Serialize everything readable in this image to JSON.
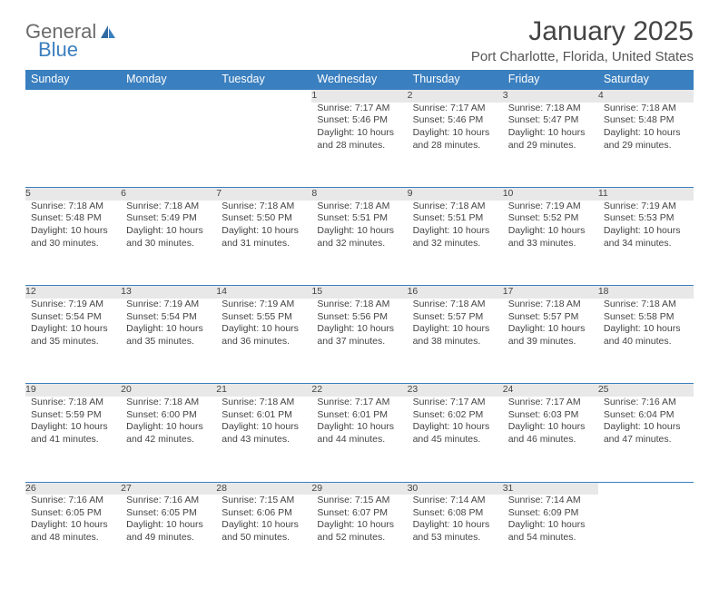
{
  "logo": {
    "text1": "General",
    "text2": "Blue"
  },
  "title": "January 2025",
  "location": "Port Charlotte, Florida, United States",
  "colors": {
    "header_bg": "#3a7fbf",
    "header_text": "#ffffff",
    "daynum_bg": "#e8e8e8",
    "rule": "#3a7fbf",
    "body_text": "#444444"
  },
  "typography": {
    "title_fontsize": 30,
    "location_fontsize": 15,
    "weekday_fontsize": 12.5,
    "daynum_fontsize": 12,
    "cell_fontsize": 10.5
  },
  "weekdays": [
    "Sunday",
    "Monday",
    "Tuesday",
    "Wednesday",
    "Thursday",
    "Friday",
    "Saturday"
  ],
  "weeks": [
    [
      null,
      null,
      null,
      {
        "n": "1",
        "sunrise": "7:17 AM",
        "sunset": "5:46 PM",
        "dl1": "Daylight: 10 hours",
        "dl2": "and 28 minutes."
      },
      {
        "n": "2",
        "sunrise": "7:17 AM",
        "sunset": "5:46 PM",
        "dl1": "Daylight: 10 hours",
        "dl2": "and 28 minutes."
      },
      {
        "n": "3",
        "sunrise": "7:18 AM",
        "sunset": "5:47 PM",
        "dl1": "Daylight: 10 hours",
        "dl2": "and 29 minutes."
      },
      {
        "n": "4",
        "sunrise": "7:18 AM",
        "sunset": "5:48 PM",
        "dl1": "Daylight: 10 hours",
        "dl2": "and 29 minutes."
      }
    ],
    [
      {
        "n": "5",
        "sunrise": "7:18 AM",
        "sunset": "5:48 PM",
        "dl1": "Daylight: 10 hours",
        "dl2": "and 30 minutes."
      },
      {
        "n": "6",
        "sunrise": "7:18 AM",
        "sunset": "5:49 PM",
        "dl1": "Daylight: 10 hours",
        "dl2": "and 30 minutes."
      },
      {
        "n": "7",
        "sunrise": "7:18 AM",
        "sunset": "5:50 PM",
        "dl1": "Daylight: 10 hours",
        "dl2": "and 31 minutes."
      },
      {
        "n": "8",
        "sunrise": "7:18 AM",
        "sunset": "5:51 PM",
        "dl1": "Daylight: 10 hours",
        "dl2": "and 32 minutes."
      },
      {
        "n": "9",
        "sunrise": "7:18 AM",
        "sunset": "5:51 PM",
        "dl1": "Daylight: 10 hours",
        "dl2": "and 32 minutes."
      },
      {
        "n": "10",
        "sunrise": "7:19 AM",
        "sunset": "5:52 PM",
        "dl1": "Daylight: 10 hours",
        "dl2": "and 33 minutes."
      },
      {
        "n": "11",
        "sunrise": "7:19 AM",
        "sunset": "5:53 PM",
        "dl1": "Daylight: 10 hours",
        "dl2": "and 34 minutes."
      }
    ],
    [
      {
        "n": "12",
        "sunrise": "7:19 AM",
        "sunset": "5:54 PM",
        "dl1": "Daylight: 10 hours",
        "dl2": "and 35 minutes."
      },
      {
        "n": "13",
        "sunrise": "7:19 AM",
        "sunset": "5:54 PM",
        "dl1": "Daylight: 10 hours",
        "dl2": "and 35 minutes."
      },
      {
        "n": "14",
        "sunrise": "7:19 AM",
        "sunset": "5:55 PM",
        "dl1": "Daylight: 10 hours",
        "dl2": "and 36 minutes."
      },
      {
        "n": "15",
        "sunrise": "7:18 AM",
        "sunset": "5:56 PM",
        "dl1": "Daylight: 10 hours",
        "dl2": "and 37 minutes."
      },
      {
        "n": "16",
        "sunrise": "7:18 AM",
        "sunset": "5:57 PM",
        "dl1": "Daylight: 10 hours",
        "dl2": "and 38 minutes."
      },
      {
        "n": "17",
        "sunrise": "7:18 AM",
        "sunset": "5:57 PM",
        "dl1": "Daylight: 10 hours",
        "dl2": "and 39 minutes."
      },
      {
        "n": "18",
        "sunrise": "7:18 AM",
        "sunset": "5:58 PM",
        "dl1": "Daylight: 10 hours",
        "dl2": "and 40 minutes."
      }
    ],
    [
      {
        "n": "19",
        "sunrise": "7:18 AM",
        "sunset": "5:59 PM",
        "dl1": "Daylight: 10 hours",
        "dl2": "and 41 minutes."
      },
      {
        "n": "20",
        "sunrise": "7:18 AM",
        "sunset": "6:00 PM",
        "dl1": "Daylight: 10 hours",
        "dl2": "and 42 minutes."
      },
      {
        "n": "21",
        "sunrise": "7:18 AM",
        "sunset": "6:01 PM",
        "dl1": "Daylight: 10 hours",
        "dl2": "and 43 minutes."
      },
      {
        "n": "22",
        "sunrise": "7:17 AM",
        "sunset": "6:01 PM",
        "dl1": "Daylight: 10 hours",
        "dl2": "and 44 minutes."
      },
      {
        "n": "23",
        "sunrise": "7:17 AM",
        "sunset": "6:02 PM",
        "dl1": "Daylight: 10 hours",
        "dl2": "and 45 minutes."
      },
      {
        "n": "24",
        "sunrise": "7:17 AM",
        "sunset": "6:03 PM",
        "dl1": "Daylight: 10 hours",
        "dl2": "and 46 minutes."
      },
      {
        "n": "25",
        "sunrise": "7:16 AM",
        "sunset": "6:04 PM",
        "dl1": "Daylight: 10 hours",
        "dl2": "and 47 minutes."
      }
    ],
    [
      {
        "n": "26",
        "sunrise": "7:16 AM",
        "sunset": "6:05 PM",
        "dl1": "Daylight: 10 hours",
        "dl2": "and 48 minutes."
      },
      {
        "n": "27",
        "sunrise": "7:16 AM",
        "sunset": "6:05 PM",
        "dl1": "Daylight: 10 hours",
        "dl2": "and 49 minutes."
      },
      {
        "n": "28",
        "sunrise": "7:15 AM",
        "sunset": "6:06 PM",
        "dl1": "Daylight: 10 hours",
        "dl2": "and 50 minutes."
      },
      {
        "n": "29",
        "sunrise": "7:15 AM",
        "sunset": "6:07 PM",
        "dl1": "Daylight: 10 hours",
        "dl2": "and 52 minutes."
      },
      {
        "n": "30",
        "sunrise": "7:14 AM",
        "sunset": "6:08 PM",
        "dl1": "Daylight: 10 hours",
        "dl2": "and 53 minutes."
      },
      {
        "n": "31",
        "sunrise": "7:14 AM",
        "sunset": "6:09 PM",
        "dl1": "Daylight: 10 hours",
        "dl2": "and 54 minutes."
      },
      null
    ]
  ]
}
